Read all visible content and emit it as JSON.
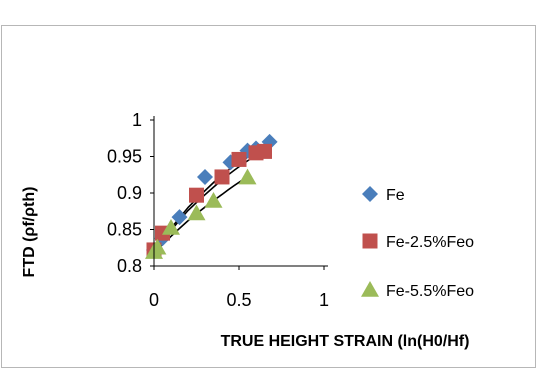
{
  "chart_data": {
    "type": "scatter",
    "title": "",
    "xlabel": "TRUE HEIGHT STRAIN  (ln(H0/Hf)",
    "ylabel": "FTD  (ρf/ρth)",
    "xlim": [
      0,
      1
    ],
    "ylim": [
      0.8,
      1
    ],
    "x_ticks": [
      "0",
      "0.5",
      "1"
    ],
    "y_ticks": [
      "0.8",
      "0.85",
      "0.9",
      "0.95",
      "1"
    ],
    "grid": false,
    "legend_position": "right",
    "series": [
      {
        "name": "Fe",
        "marker": "diamond",
        "color": "#4a7ebb",
        "x": [
          0.0,
          0.05,
          0.15,
          0.3,
          0.45,
          0.55,
          0.6,
          0.68
        ],
        "y": [
          0.822,
          0.838,
          0.867,
          0.922,
          0.942,
          0.958,
          0.961,
          0.97
        ],
        "trendline": [
          [
            0.0,
            0.822
          ],
          [
            0.2,
            0.88
          ],
          [
            0.4,
            0.925
          ],
          [
            0.55,
            0.949
          ],
          [
            0.68,
            0.964
          ]
        ]
      },
      {
        "name": "Fe-2.5%Feo",
        "marker": "square",
        "color": "#c0504d",
        "x": [
          0.0,
          0.05,
          0.25,
          0.4,
          0.5,
          0.6,
          0.65
        ],
        "y": [
          0.822,
          0.845,
          0.897,
          0.922,
          0.946,
          0.955,
          0.957
        ],
        "trendline": [
          [
            0.0,
            0.82
          ],
          [
            0.2,
            0.876
          ],
          [
            0.4,
            0.918
          ],
          [
            0.55,
            0.944
          ],
          [
            0.65,
            0.957
          ]
        ]
      },
      {
        "name": "Fe-5.5%Feo",
        "marker": "triangle",
        "color": "#9bbb59",
        "x": [
          0.0,
          0.02,
          0.1,
          0.25,
          0.35,
          0.55
        ],
        "y": [
          0.819,
          0.825,
          0.852,
          0.872,
          0.889,
          0.921
        ],
        "trendline": [
          [
            0.0,
            0.818
          ],
          [
            0.2,
            0.862
          ],
          [
            0.4,
            0.898
          ],
          [
            0.55,
            0.922
          ]
        ]
      }
    ]
  }
}
